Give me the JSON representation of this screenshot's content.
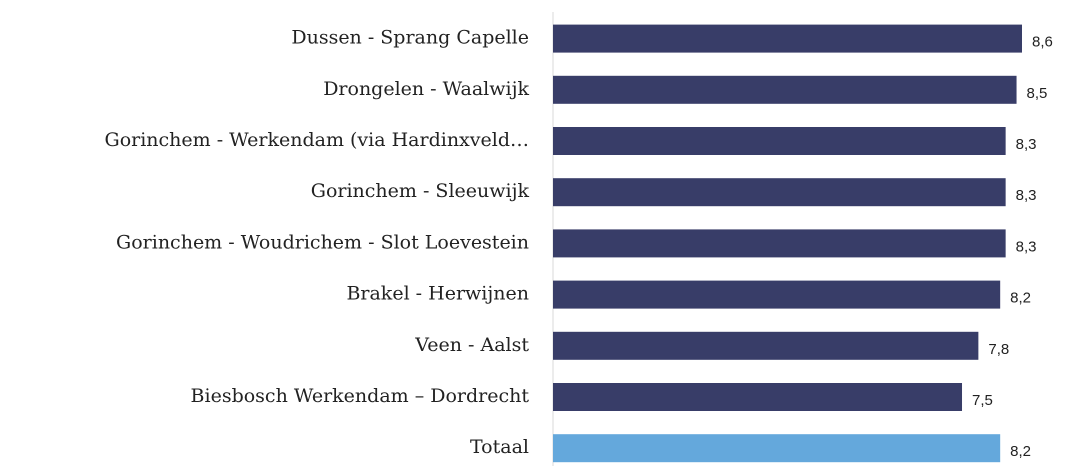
{
  "chart_data": {
    "type": "barh",
    "categories": [
      "Dussen - Sprang Capelle",
      "Drongelen - Waalwijk",
      "Gorinchem - Werkendam (via Hardinxveld…",
      "Gorinchem - Sleeuwijk",
      "Gorinchem - Woudrichem - Slot Loevestein",
      "Brakel - Herwijnen",
      "Veen - Aalst",
      "Biesbosch Werkendam – Dordrecht",
      "Totaal"
    ],
    "values": [
      8.6,
      8.5,
      8.3,
      8.3,
      8.3,
      8.2,
      7.8,
      7.5,
      8.2
    ],
    "value_labels": [
      "8,6",
      "8,5",
      "8,3",
      "8,3",
      "8,3",
      "8,2",
      "7,8",
      "7,5",
      "8,2"
    ],
    "colors": [
      "#383d68",
      "#383d68",
      "#383d68",
      "#383d68",
      "#383d68",
      "#383d68",
      "#383d68",
      "#383d68",
      "#64a8dc"
    ]
  }
}
